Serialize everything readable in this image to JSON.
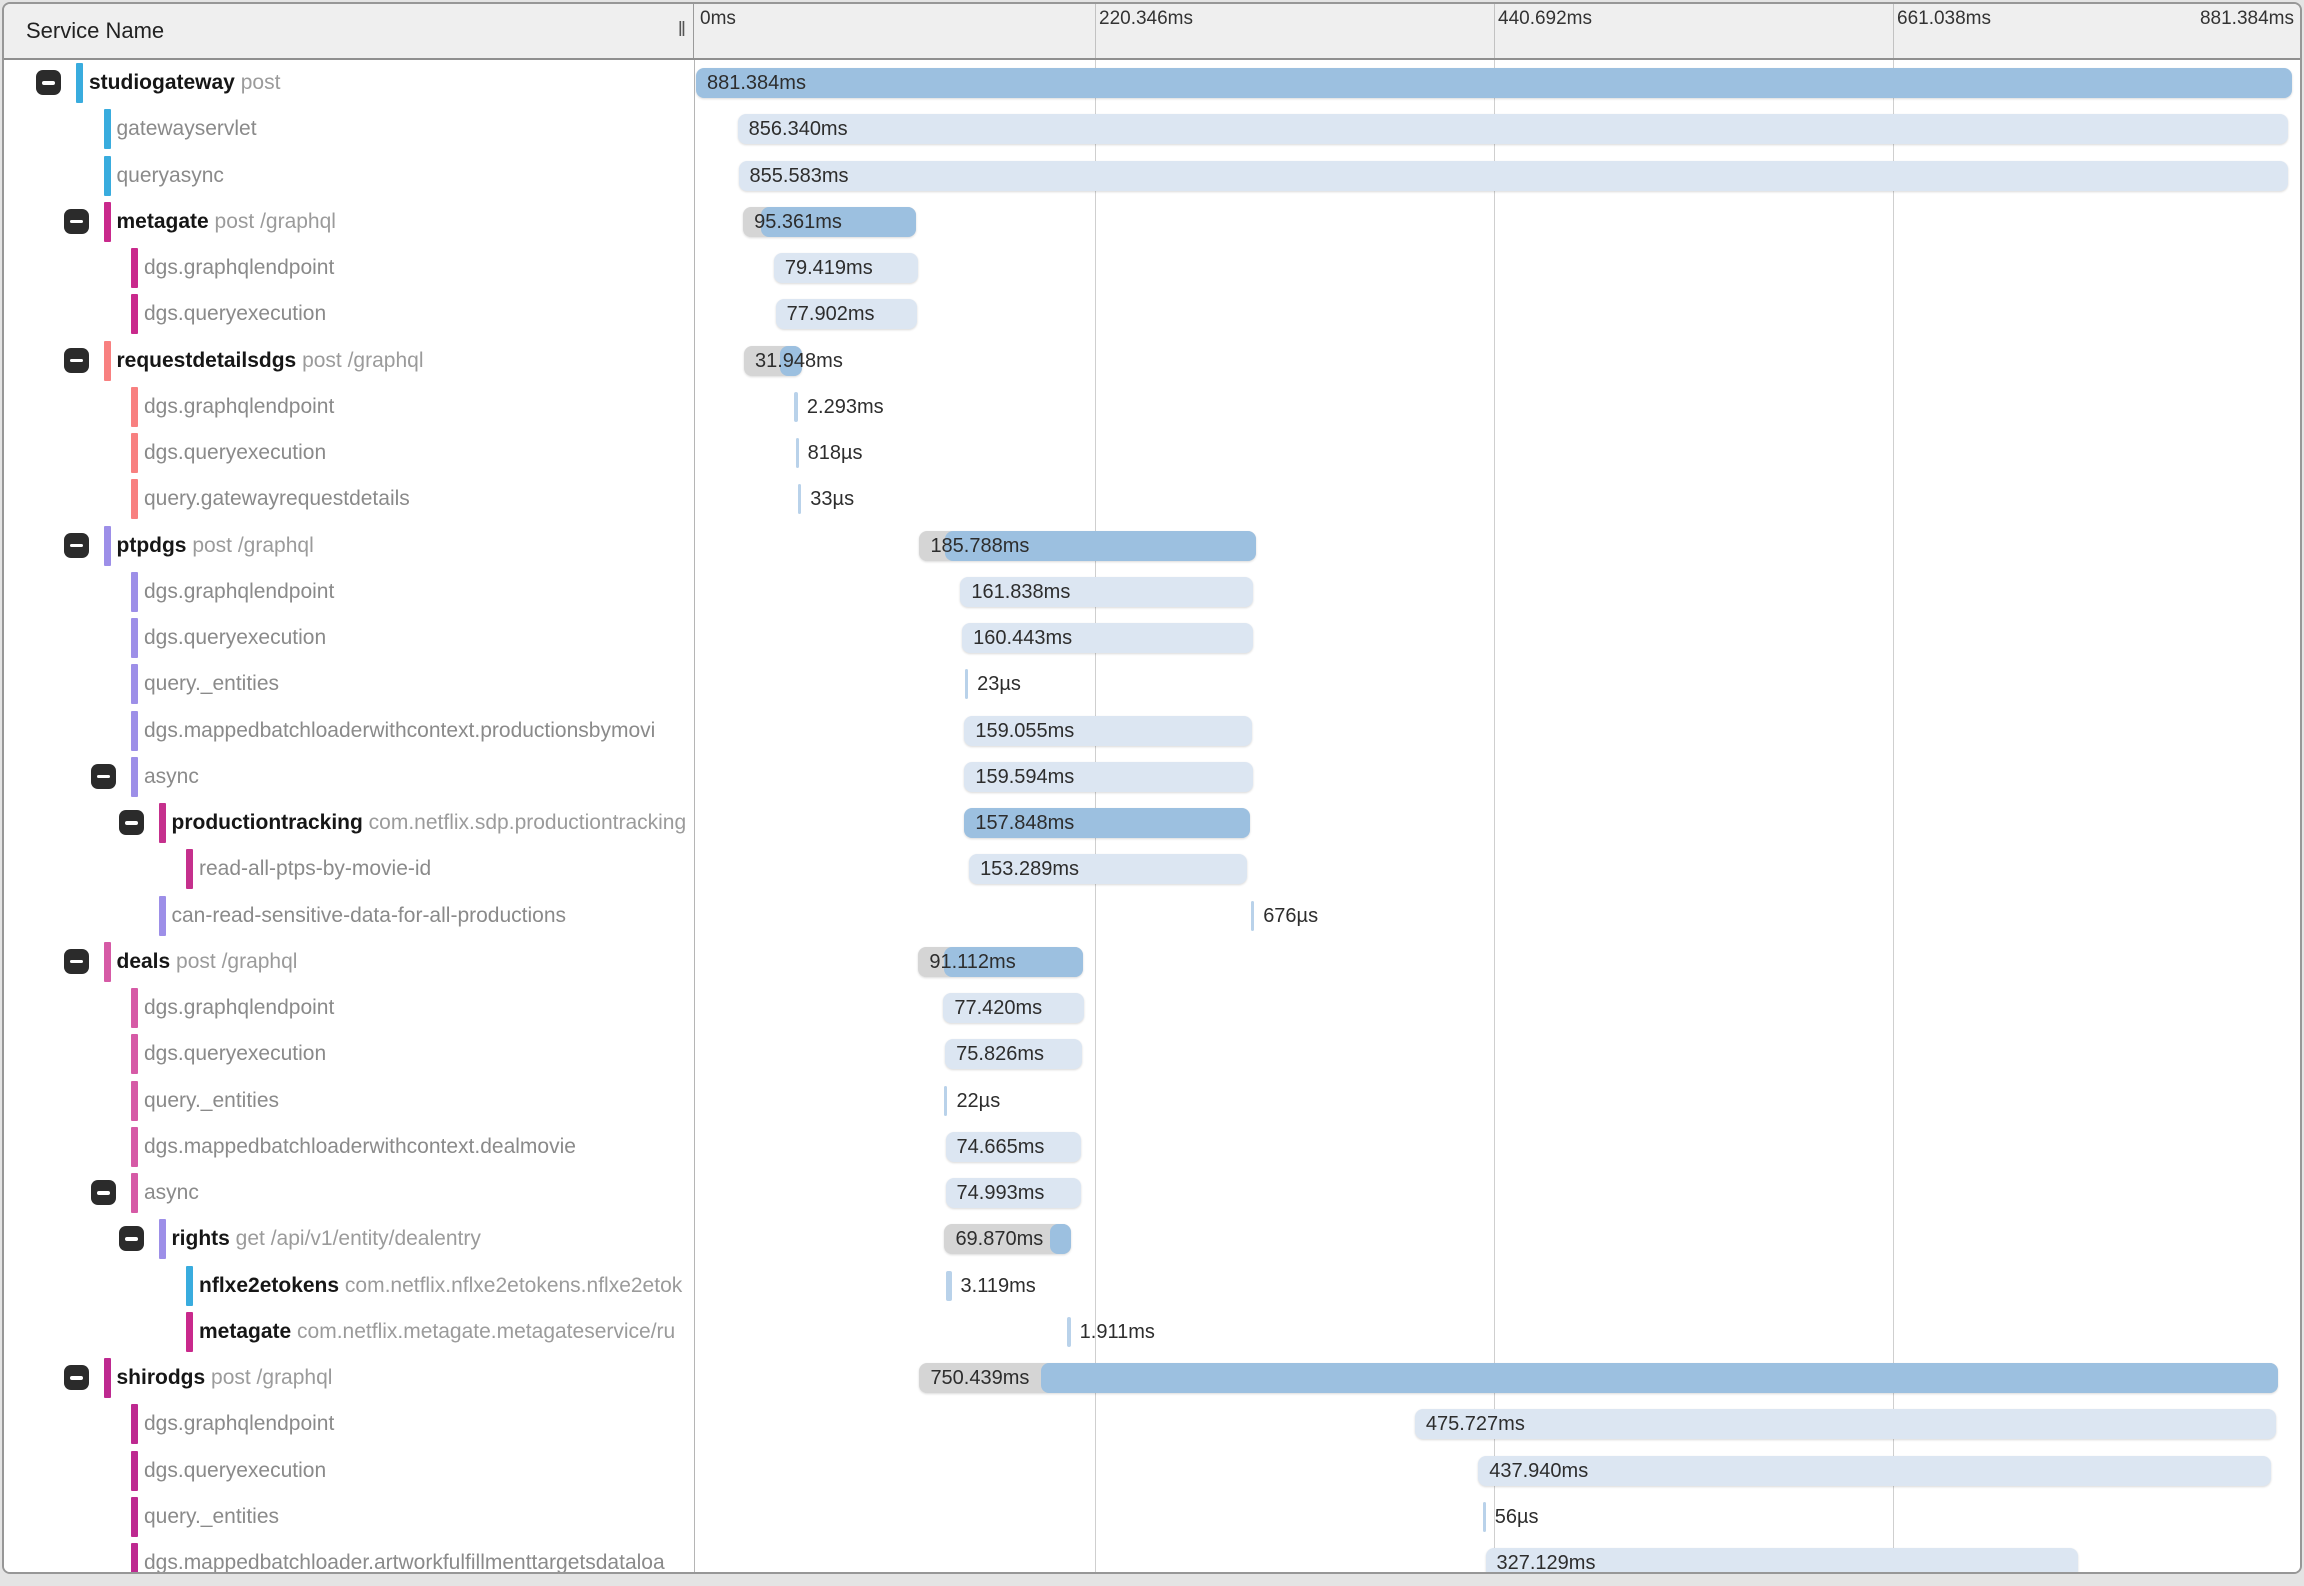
{
  "header": {
    "service_name_label": "Service Name",
    "resize_handle": "‖",
    "ticks": [
      "0ms",
      "220.346ms",
      "440.692ms",
      "661.038ms",
      "881.384ms"
    ],
    "total_ms": 881.384
  },
  "colors": {
    "blue": "#39ACDE",
    "magenta": "#C9298C",
    "salmon": "#F88080",
    "purple": "#9D8FE8",
    "prodpink": "#C5308D",
    "pink": "#D65AA6",
    "magenta2": "#BE2990",
    "bar_solid": "#9CC0E0",
    "bar_light": "#DCE6F2",
    "bar_gray": "#D5D5D5",
    "bar_hair": "#B9D2EA",
    "button_bg": "#2b2b2b"
  },
  "rows": [
    {
      "label": "studiogateway",
      "suffix": "post",
      "indent": 0,
      "expand": true,
      "bold": true,
      "color": "blue",
      "bar": {
        "kind": "solid",
        "start": 0,
        "dur": 881.384,
        "text": "881.384ms"
      }
    },
    {
      "label": "gatewayservlet",
      "suffix": "",
      "indent": 1,
      "expand": false,
      "bold": false,
      "color": "blue",
      "bar": {
        "kind": "light",
        "start": 23,
        "dur": 856.34,
        "text": "856.340ms"
      }
    },
    {
      "label": "queryasync",
      "suffix": "",
      "indent": 1,
      "expand": false,
      "bold": false,
      "color": "blue",
      "bar": {
        "kind": "light",
        "start": 23.5,
        "dur": 855.583,
        "text": "855.583ms"
      }
    },
    {
      "label": "metagate",
      "suffix": "post /graphql",
      "indent": 1,
      "expand": true,
      "bold": true,
      "color": "magenta",
      "bar": {
        "kind": "lead",
        "start": 26,
        "dur": 95.361,
        "lead": 10,
        "text": "95.361ms"
      }
    },
    {
      "label": "dgs.graphqlendpoint",
      "suffix": "",
      "indent": 2,
      "expand": false,
      "bold": false,
      "color": "magenta",
      "bar": {
        "kind": "light",
        "start": 43,
        "dur": 79.419,
        "text": "79.419ms"
      }
    },
    {
      "label": "dgs.queryexecution",
      "suffix": "",
      "indent": 2,
      "expand": false,
      "bold": false,
      "color": "magenta",
      "bar": {
        "kind": "light",
        "start": 44,
        "dur": 77.902,
        "text": "77.902ms"
      }
    },
    {
      "label": "requestdetailsdgs",
      "suffix": "post /graphql",
      "indent": 1,
      "expand": true,
      "bold": true,
      "color": "salmon",
      "bar": {
        "kind": "tail",
        "start": 26.5,
        "dur": 31.948,
        "tail": 12,
        "text": "31.948ms"
      }
    },
    {
      "label": "dgs.graphqlendpoint",
      "suffix": "",
      "indent": 2,
      "expand": false,
      "bold": false,
      "color": "salmon",
      "bar": {
        "kind": "hair",
        "start": 54,
        "dur": 2.293,
        "text": "2.293ms"
      }
    },
    {
      "label": "dgs.queryexecution",
      "suffix": "",
      "indent": 2,
      "expand": false,
      "bold": false,
      "color": "salmon",
      "bar": {
        "kind": "hair",
        "start": 55,
        "dur": 0.818,
        "text": "818µs"
      }
    },
    {
      "label": "query.gatewayrequestdetails",
      "suffix": "",
      "indent": 2,
      "expand": false,
      "bold": false,
      "color": "salmon",
      "bar": {
        "kind": "hair",
        "start": 56.5,
        "dur": 0.033,
        "text": "33µs"
      }
    },
    {
      "label": "ptpdgs",
      "suffix": "post /graphql",
      "indent": 1,
      "expand": true,
      "bold": true,
      "color": "purple",
      "bar": {
        "kind": "lead",
        "start": 123.4,
        "dur": 185.788,
        "lead": 14,
        "text": "185.788ms"
      }
    },
    {
      "label": "dgs.graphqlendpoint",
      "suffix": "",
      "indent": 2,
      "expand": false,
      "bold": false,
      "color": "purple",
      "bar": {
        "kind": "light",
        "start": 146,
        "dur": 161.838,
        "text": "161.838ms"
      }
    },
    {
      "label": "dgs.queryexecution",
      "suffix": "",
      "indent": 2,
      "expand": false,
      "bold": false,
      "color": "purple",
      "bar": {
        "kind": "light",
        "start": 147,
        "dur": 160.443,
        "text": "160.443ms"
      }
    },
    {
      "label": "query._entities",
      "suffix": "",
      "indent": 2,
      "expand": false,
      "bold": false,
      "color": "purple",
      "bar": {
        "kind": "hair",
        "start": 148.6,
        "dur": 0.023,
        "text": "23µs"
      }
    },
    {
      "label": "dgs.mappedbatchloaderwithcontext.productionsbymovi",
      "suffix": "",
      "indent": 2,
      "expand": false,
      "bold": false,
      "color": "purple",
      "bar": {
        "kind": "light",
        "start": 148.2,
        "dur": 159.055,
        "text": "159.055ms"
      }
    },
    {
      "label": "async",
      "suffix": "",
      "indent": 2,
      "expand": true,
      "bold": false,
      "color": "purple",
      "bar": {
        "kind": "light",
        "start": 148.2,
        "dur": 159.594,
        "text": "159.594ms"
      }
    },
    {
      "label": "productiontracking",
      "suffix": "com.netflix.sdp.productiontracking",
      "indent": 3,
      "expand": true,
      "bold": true,
      "color": "prodpink",
      "bar": {
        "kind": "solid",
        "start": 148.2,
        "dur": 157.848,
        "text": "157.848ms"
      }
    },
    {
      "label": "read-all-ptps-by-movie-id",
      "suffix": "",
      "indent": 4,
      "expand": false,
      "bold": false,
      "color": "prodpink",
      "bar": {
        "kind": "light",
        "start": 150.8,
        "dur": 153.289,
        "text": "153.289ms"
      }
    },
    {
      "label": "can-read-sensitive-data-for-all-productions",
      "suffix": "",
      "indent": 3,
      "expand": false,
      "bold": false,
      "color": "purple",
      "bar": {
        "kind": "hair",
        "start": 306.6,
        "dur": 0.676,
        "text": "676µs"
      }
    },
    {
      "label": "deals",
      "suffix": "post /graphql",
      "indent": 1,
      "expand": true,
      "bold": true,
      "color": "pink",
      "bar": {
        "kind": "lead",
        "start": 122.8,
        "dur": 91.112,
        "lead": 14,
        "text": "91.112ms"
      }
    },
    {
      "label": "dgs.graphqlendpoint",
      "suffix": "",
      "indent": 2,
      "expand": false,
      "bold": false,
      "color": "pink",
      "bar": {
        "kind": "light",
        "start": 136.6,
        "dur": 77.42,
        "text": "77.420ms"
      }
    },
    {
      "label": "dgs.queryexecution",
      "suffix": "",
      "indent": 2,
      "expand": false,
      "bold": false,
      "color": "pink",
      "bar": {
        "kind": "light",
        "start": 137.6,
        "dur": 75.826,
        "text": "75.826ms"
      }
    },
    {
      "label": "query._entities",
      "suffix": "",
      "indent": 2,
      "expand": false,
      "bold": false,
      "color": "pink",
      "bar": {
        "kind": "hair",
        "start": 137.2,
        "dur": 0.022,
        "text": "22µs"
      }
    },
    {
      "label": "dgs.mappedbatchloaderwithcontext.dealmovie",
      "suffix": "",
      "indent": 2,
      "expand": false,
      "bold": false,
      "color": "pink",
      "bar": {
        "kind": "light",
        "start": 137.8,
        "dur": 74.665,
        "text": "74.665ms"
      }
    },
    {
      "label": "async",
      "suffix": "",
      "indent": 2,
      "expand": true,
      "bold": false,
      "color": "pink",
      "bar": {
        "kind": "light",
        "start": 137.8,
        "dur": 74.993,
        "text": "74.993ms"
      }
    },
    {
      "label": "rights",
      "suffix": "get /api/v1/entity/dealentry",
      "indent": 3,
      "expand": true,
      "bold": true,
      "color": "purple",
      "bar": {
        "kind": "tail",
        "start": 137.2,
        "dur": 69.87,
        "tail": 11.5,
        "text": "69.870ms"
      }
    },
    {
      "label": "nflxe2etokens",
      "suffix": "com.netflix.nflxe2etokens.nflxe2etok",
      "indent": 4,
      "expand": false,
      "bold": true,
      "color": "blue",
      "bar": {
        "kind": "hair",
        "start": 138,
        "dur": 3.119,
        "text": "3.119ms"
      }
    },
    {
      "label": "metagate",
      "suffix": "com.netflix.metagate.metagateservice/ru",
      "indent": 4,
      "expand": false,
      "bold": true,
      "color": "magenta",
      "bar": {
        "kind": "hair",
        "start": 205,
        "dur": 1.911,
        "text": "1.911ms"
      }
    },
    {
      "label": "shirodgs",
      "suffix": "post /graphql",
      "indent": 1,
      "expand": true,
      "bold": true,
      "color": "magenta2",
      "bar": {
        "kind": "lead",
        "start": 123.4,
        "dur": 750.439,
        "lead": 67,
        "text": "750.439ms"
      }
    },
    {
      "label": "dgs.graphqlendpoint",
      "suffix": "",
      "indent": 2,
      "expand": false,
      "bold": false,
      "color": "magenta2",
      "bar": {
        "kind": "light",
        "start": 397,
        "dur": 475.727,
        "text": "475.727ms"
      }
    },
    {
      "label": "dgs.queryexecution",
      "suffix": "",
      "indent": 2,
      "expand": false,
      "bold": false,
      "color": "magenta2",
      "bar": {
        "kind": "light",
        "start": 432,
        "dur": 437.94,
        "text": "437.940ms"
      }
    },
    {
      "label": "query._entities",
      "suffix": "",
      "indent": 2,
      "expand": false,
      "bold": false,
      "color": "magenta2",
      "bar": {
        "kind": "hair",
        "start": 434.5,
        "dur": 0.056,
        "text": "56µs"
      }
    },
    {
      "label": "dgs.mappedbatchloader.artworkfulfillmenttargetsdataloa",
      "suffix": "",
      "indent": 2,
      "expand": false,
      "bold": false,
      "color": "magenta2",
      "bar": {
        "kind": "light",
        "start": 436,
        "dur": 327.129,
        "text": "327.129ms"
      }
    }
  ]
}
